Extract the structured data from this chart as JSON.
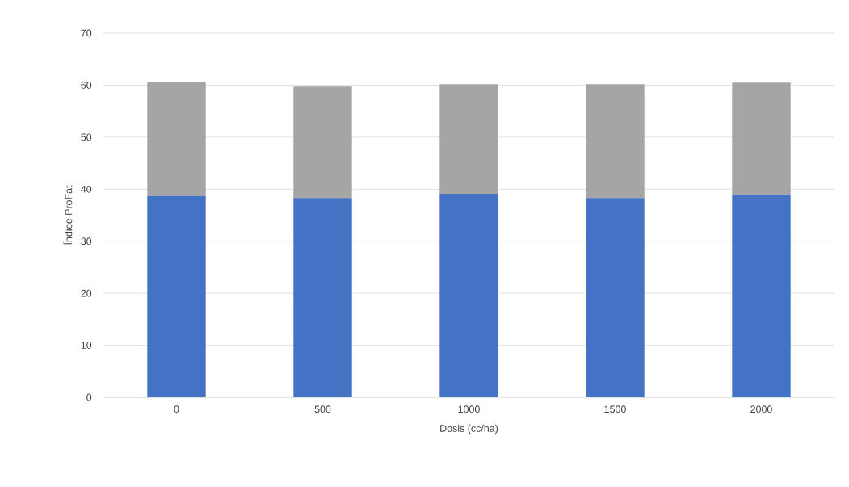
{
  "chart_data": {
    "type": "bar",
    "stacked": true,
    "xlabel": "Dosis (cc/ha)",
    "ylabel": "Índice ProFat",
    "categories": [
      "0",
      "500",
      "1000",
      "1500",
      "2000"
    ],
    "series": [
      {
        "color": "#4472c4",
        "values": [
          38.7,
          38.3,
          39.1,
          38.3,
          38.9
        ]
      },
      {
        "color": "#a5a5a5",
        "values": [
          21.9,
          21.4,
          21.1,
          21.9,
          21.6
        ]
      }
    ],
    "ylim": [
      0,
      70
    ],
    "yticks": [
      0,
      10,
      20,
      30,
      40,
      50,
      60,
      70
    ],
    "grid": "y",
    "legend": false
  }
}
